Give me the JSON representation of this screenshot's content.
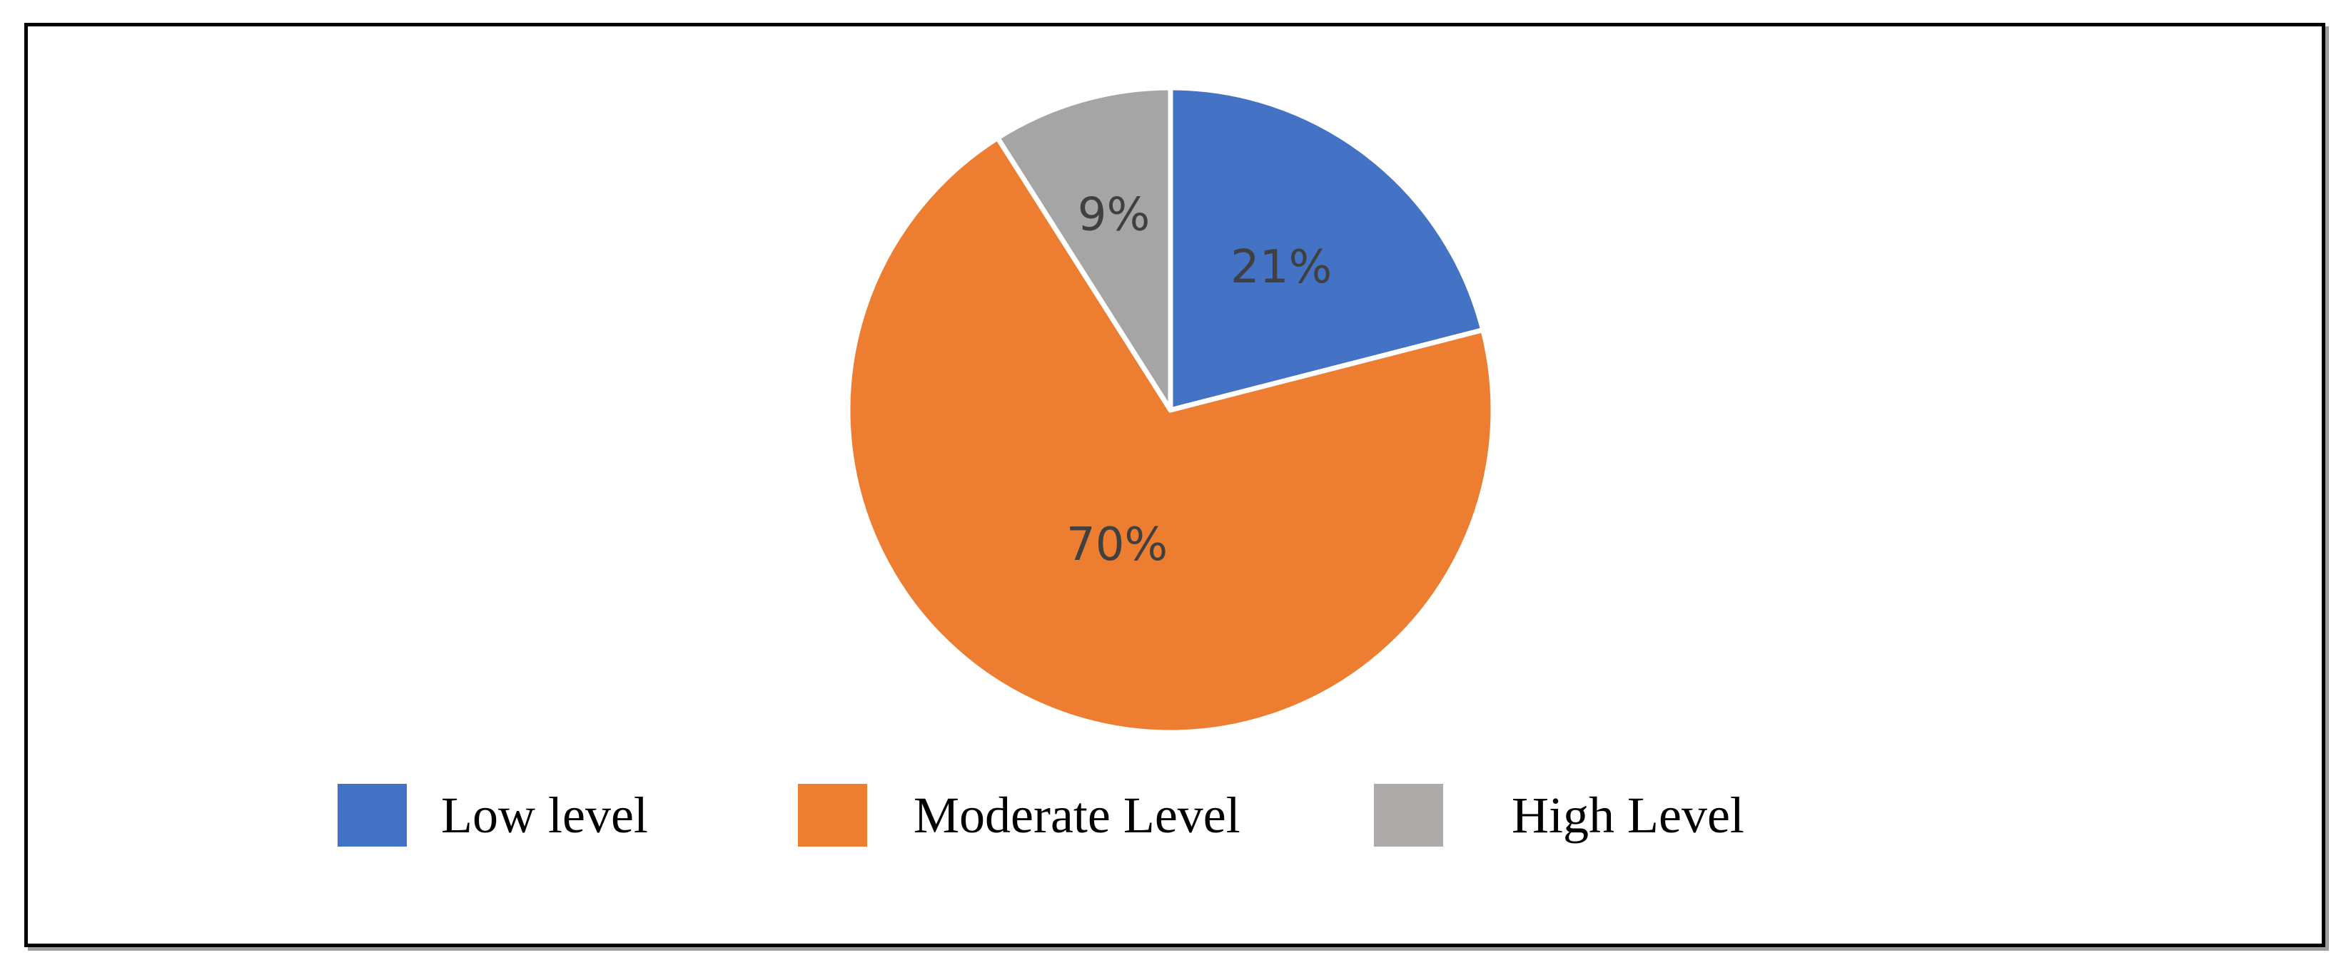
{
  "chart_data": {
    "type": "pie",
    "categories": [
      "Low level",
      "Moderate Level",
      "High Level"
    ],
    "values": [
      21,
      70,
      9
    ],
    "labels": [
      "21%",
      "70%",
      "9%"
    ],
    "colors": [
      "#4472C4",
      "#ED7D31",
      "#A5A5A5"
    ],
    "legend_colors": [
      "#4472C4",
      "#ED7D31",
      "#AEAAAA"
    ],
    "start_direction": "top",
    "direction": "clockwise",
    "legend_placement": "bottom"
  }
}
